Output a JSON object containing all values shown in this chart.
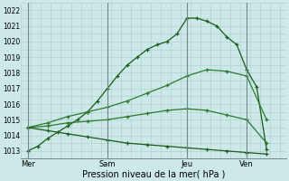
{
  "background_color": "#cce8e8",
  "grid_color": "#aacccc",
  "line_colors": [
    "#1a5c1a",
    "#2d7a2d",
    "#2d7a2d",
    "#1a5c1a"
  ],
  "ylim": [
    1012.5,
    1022.5
  ],
  "yticks": [
    1013,
    1014,
    1015,
    1016,
    1017,
    1018,
    1019,
    1020,
    1021,
    1022
  ],
  "xlabel": "Pression niveau de la mer( hPa )",
  "day_labels": [
    "Mer",
    "Sam",
    "Jeu",
    "Ven"
  ],
  "day_positions": [
    0,
    24,
    48,
    66
  ],
  "xlim": [
    -2,
    78
  ],
  "series": [
    {
      "x": [
        0,
        3,
        6,
        9,
        12,
        15,
        18,
        21,
        24,
        27,
        30,
        33,
        36,
        39,
        42,
        45,
        48,
        51,
        54,
        57,
        60,
        63,
        66,
        69,
        72
      ],
      "y": [
        1013.0,
        1013.3,
        1013.8,
        1014.2,
        1014.6,
        1015.0,
        1015.5,
        1016.2,
        1017.0,
        1017.8,
        1018.5,
        1019.0,
        1019.5,
        1019.8,
        1020.0,
        1020.5,
        1021.5,
        1021.5,
        1021.3,
        1021.0,
        1020.3,
        1019.8,
        1018.2,
        1017.1,
        1013.1
      ],
      "marker": "+"
    },
    {
      "x": [
        0,
        6,
        12,
        18,
        24,
        30,
        36,
        42,
        48,
        54,
        60,
        66,
        72
      ],
      "y": [
        1014.5,
        1014.8,
        1015.2,
        1015.5,
        1015.8,
        1016.2,
        1016.7,
        1017.2,
        1017.8,
        1018.2,
        1018.1,
        1017.8,
        1015.0
      ],
      "marker": "+"
    },
    {
      "x": [
        0,
        6,
        12,
        18,
        24,
        30,
        36,
        42,
        48,
        54,
        60,
        66,
        72
      ],
      "y": [
        1014.5,
        1014.6,
        1014.8,
        1014.9,
        1015.0,
        1015.2,
        1015.4,
        1015.6,
        1015.7,
        1015.6,
        1015.3,
        1015.0,
        1013.5
      ],
      "marker": "+"
    },
    {
      "x": [
        0,
        6,
        12,
        18,
        24,
        30,
        36,
        42,
        48,
        54,
        60,
        66,
        72
      ],
      "y": [
        1014.5,
        1014.3,
        1014.1,
        1013.9,
        1013.7,
        1013.5,
        1013.4,
        1013.3,
        1013.2,
        1013.1,
        1013.0,
        1012.9,
        1012.8
      ],
      "marker": "+"
    }
  ]
}
